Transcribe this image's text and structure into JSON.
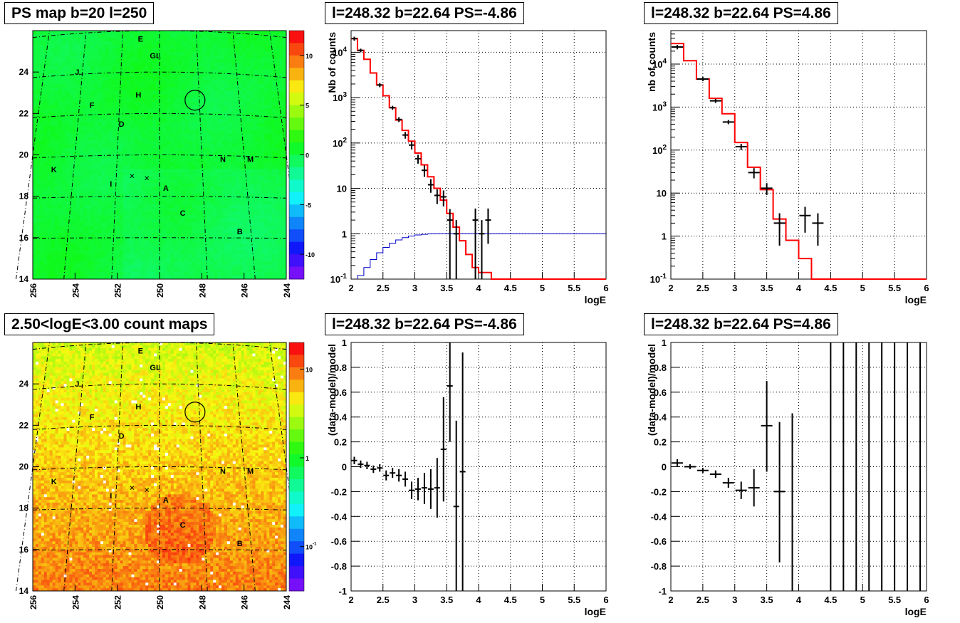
{
  "panels": {
    "top_left_title": "PS map b=20 l=250",
    "top_mid_title": "l=248.32 b=22.64 PS=-4.86",
    "top_right_title": "l=248.32 b=22.64 PS=4.86",
    "bot_left_title": "2.50<logE<3.00 count maps",
    "bot_mid_title": "l=248.32 b=22.64 PS=-4.86",
    "bot_right_title": "l=248.32 b=22.64 PS=4.86"
  },
  "colors": {
    "data": "#000000",
    "model": "#ff0000",
    "acceptance": "#0000cc",
    "map_green": "#22ee44"
  },
  "chart_data": [
    {
      "type": "heatmap",
      "title": "PS map b=20 l=250",
      "xlim": [
        256,
        244
      ],
      "ylim": [
        14,
        26
      ],
      "x_ticks": [
        "256",
        "254",
        "252",
        "250",
        "248",
        "246",
        "244"
      ],
      "y_ticks": [
        "14",
        "16",
        "18",
        "20",
        "22",
        "24"
      ],
      "colorbar_ticks": [
        "10",
        "5",
        "0",
        "-5",
        "-10"
      ],
      "colorbar_range": [
        -12.5,
        12.5
      ],
      "source_labels": [
        {
          "name": "E",
          "l": 250.9,
          "b": 25.6
        },
        {
          "name": "GL",
          "l": 250.2,
          "b": 24.8
        },
        {
          "name": "J",
          "l": 253.9,
          "b": 24.0
        },
        {
          "name": "H",
          "l": 251.0,
          "b": 22.9
        },
        {
          "name": "F",
          "l": 253.2,
          "b": 22.4
        },
        {
          "name": "D",
          "l": 251.8,
          "b": 21.5
        },
        {
          "name": "K",
          "l": 255.0,
          "b": 19.3
        },
        {
          "name": "N",
          "l": 247.0,
          "b": 19.8
        },
        {
          "name": "M",
          "l": 245.7,
          "b": 19.8
        },
        {
          "name": "I",
          "l": 252.3,
          "b": 18.6
        },
        {
          "name": "A",
          "l": 249.7,
          "b": 18.4
        },
        {
          "name": "C",
          "l": 248.9,
          "b": 17.2
        },
        {
          "name": "B",
          "l": 246.2,
          "b": 16.3
        }
      ],
      "crosses": [
        {
          "l": 251.3,
          "b": 19.0
        },
        {
          "l": 250.6,
          "b": 18.9
        }
      ],
      "circle": {
        "l": 248.32,
        "b": 22.64
      }
    },
    {
      "type": "line",
      "title": "l=248.32 b=22.64 PS=-4.86",
      "xlabel": "logE",
      "ylabel": "Nb of counts",
      "yscale": "log",
      "xlim": [
        2,
        6
      ],
      "ylim": [
        0.1,
        30000
      ],
      "x_ticks": [
        "2",
        "2.5",
        "3",
        "3.5",
        "4",
        "4.5",
        "5",
        "5.5",
        "6"
      ],
      "y_ticks": [
        "10^-1",
        "1",
        "10",
        "10^2",
        "10^3",
        "10^4"
      ],
      "model_step": {
        "edges": [
          2,
          2.1,
          2.2,
          2.3,
          2.4,
          2.5,
          2.6,
          2.7,
          2.8,
          2.9,
          3.0,
          3.1,
          3.2,
          3.3,
          3.4,
          3.5,
          3.6,
          3.7,
          3.8,
          3.9,
          4.0,
          4.1,
          4.2,
          6.0
        ],
        "values": [
          20000,
          11000,
          7000,
          3500,
          1900,
          1100,
          600,
          320,
          190,
          110,
          60,
          33,
          18,
          10,
          5.5,
          2.8,
          1.4,
          0.7,
          0.35,
          0.18,
          0.14,
          0.14,
          0.1
        ]
      },
      "acceptance_step": {
        "edges": [
          2.1,
          2.2,
          2.3,
          2.4,
          2.5,
          2.6,
          2.7,
          2.8,
          2.9,
          3.0,
          3.1,
          3.2,
          3.3,
          3.4,
          3.5,
          6.0
        ],
        "values": [
          0.12,
          0.18,
          0.27,
          0.38,
          0.5,
          0.62,
          0.73,
          0.82,
          0.89,
          0.94,
          0.97,
          0.99,
          1.0,
          1.0,
          1.0
        ]
      },
      "points": [
        {
          "x": 2.05,
          "y": 20000,
          "lo": 18000,
          "hi": 22000
        },
        {
          "x": 2.15,
          "y": 11000,
          "lo": 10000,
          "hi": 12000
        },
        {
          "x": 2.45,
          "y": 1900,
          "lo": 1700,
          "hi": 2100
        },
        {
          "x": 2.65,
          "y": 600,
          "lo": 540,
          "hi": 660
        },
        {
          "x": 2.75,
          "y": 330,
          "lo": 290,
          "hi": 370
        },
        {
          "x": 2.85,
          "y": 150,
          "lo": 125,
          "hi": 175
        },
        {
          "x": 2.95,
          "y": 90,
          "lo": 72,
          "hi": 108
        },
        {
          "x": 3.05,
          "y": 45,
          "lo": 35,
          "hi": 55
        },
        {
          "x": 3.15,
          "y": 25,
          "lo": 18,
          "hi": 32
        },
        {
          "x": 3.25,
          "y": 12,
          "lo": 8,
          "hi": 16
        },
        {
          "x": 3.35,
          "y": 7,
          "lo": 4.5,
          "hi": 9.5
        },
        {
          "x": 3.45,
          "y": 6.5,
          "lo": 4,
          "hi": 9
        },
        {
          "x": 3.55,
          "y": 2,
          "lo": 0.1,
          "hi": 3.5
        },
        {
          "x": 3.65,
          "y": 1,
          "lo": 0.1,
          "hi": 2.0
        },
        {
          "x": 3.95,
          "y": 2,
          "lo": 0.1,
          "hi": 3.6
        },
        {
          "x": 4.05,
          "y": 1,
          "lo": 0.1,
          "hi": 2.0
        },
        {
          "x": 4.15,
          "y": 2,
          "lo": 0.6,
          "hi": 3.6
        }
      ]
    },
    {
      "type": "line",
      "title": "l=248.32 b=22.64 PS=4.86",
      "xlabel": "logE",
      "ylabel": "nb of counts",
      "yscale": "log",
      "xlim": [
        2,
        6
      ],
      "ylim": [
        0.1,
        60000
      ],
      "x_ticks": [
        "2",
        "2.5",
        "3",
        "3.5",
        "4",
        "4.5",
        "5",
        "5.5",
        "6"
      ],
      "y_ticks": [
        "10^-1",
        "1",
        "10",
        "10^2",
        "10^3",
        "10^4"
      ],
      "model_step": {
        "edges": [
          2,
          2.2,
          2.4,
          2.6,
          2.8,
          3.0,
          3.2,
          3.4,
          3.6,
          3.8,
          4.0,
          4.2,
          6.0
        ],
        "values": [
          30000,
          12000,
          4500,
          1600,
          700,
          150,
          40,
          12,
          2.5,
          0.8,
          0.3,
          0.1
        ]
      },
      "points": [
        {
          "x": 2.1,
          "y": 25000,
          "lo": 22000,
          "hi": 28000
        },
        {
          "x": 2.5,
          "y": 4500,
          "lo": 4000,
          "hi": 5000
        },
        {
          "x": 2.7,
          "y": 1400,
          "lo": 1250,
          "hi": 1550
        },
        {
          "x": 2.9,
          "y": 450,
          "lo": 400,
          "hi": 500
        },
        {
          "x": 3.1,
          "y": 120,
          "lo": 100,
          "hi": 140
        },
        {
          "x": 3.3,
          "y": 30,
          "lo": 22,
          "hi": 38
        },
        {
          "x": 3.5,
          "y": 13,
          "lo": 9,
          "hi": 17
        },
        {
          "x": 3.7,
          "y": 2,
          "lo": 0.6,
          "hi": 3.4
        },
        {
          "x": 4.1,
          "y": 3,
          "lo": 1.2,
          "hi": 4.8
        },
        {
          "x": 4.3,
          "y": 2,
          "lo": 0.6,
          "hi": 3.4
        }
      ]
    },
    {
      "type": "heatmap",
      "title": "2.50<logE<3.00 count maps",
      "xlim": [
        256,
        244
      ],
      "ylim": [
        14,
        26
      ],
      "x_ticks": [
        "256",
        "254",
        "252",
        "250",
        "248",
        "246",
        "244"
      ],
      "y_ticks": [
        "14",
        "16",
        "18",
        "20",
        "22",
        "24"
      ],
      "colorbar_ticks": [
        "10",
        "1",
        "10^-1"
      ]
    },
    {
      "type": "scatter",
      "title": "l=248.32 b=22.64 PS=-4.86",
      "xlabel": "logE",
      "ylabel": "(data-model)/model",
      "xlim": [
        2,
        6
      ],
      "ylim": [
        -1,
        1
      ],
      "x_ticks": [
        "2",
        "2.5",
        "3",
        "3.5",
        "4",
        "4.5",
        "5",
        "5.5",
        "6"
      ],
      "y_ticks": [
        "-1",
        "-0.8",
        "-0.6",
        "-0.4",
        "-0.2",
        "0",
        "0.2",
        "0.4",
        "0.6",
        "0.8",
        "1"
      ],
      "points": [
        {
          "x": 2.05,
          "y": 0.05,
          "lo": 0.02,
          "hi": 0.08
        },
        {
          "x": 2.15,
          "y": 0.02,
          "lo": -0.01,
          "hi": 0.05
        },
        {
          "x": 2.25,
          "y": 0.01,
          "lo": -0.02,
          "hi": 0.04
        },
        {
          "x": 2.35,
          "y": -0.02,
          "lo": -0.05,
          "hi": 0.01
        },
        {
          "x": 2.45,
          "y": -0.01,
          "lo": -0.04,
          "hi": 0.02
        },
        {
          "x": 2.55,
          "y": -0.07,
          "lo": -0.11,
          "hi": -0.03
        },
        {
          "x": 2.65,
          "y": -0.05,
          "lo": -0.09,
          "hi": -0.01
        },
        {
          "x": 2.75,
          "y": -0.07,
          "lo": -0.12,
          "hi": -0.02
        },
        {
          "x": 2.85,
          "y": -0.1,
          "lo": -0.16,
          "hi": -0.04
        },
        {
          "x": 2.95,
          "y": -0.19,
          "lo": -0.26,
          "hi": -0.12
        },
        {
          "x": 3.05,
          "y": -0.18,
          "lo": -0.27,
          "hi": -0.09
        },
        {
          "x": 3.15,
          "y": -0.17,
          "lo": -0.3,
          "hi": -0.05
        },
        {
          "x": 3.25,
          "y": -0.18,
          "lo": -0.34,
          "hi": -0.02
        },
        {
          "x": 3.35,
          "y": -0.17,
          "lo": -0.41,
          "hi": 0.07
        },
        {
          "x": 3.45,
          "y": 0.14,
          "lo": -0.28,
          "hi": 0.56
        },
        {
          "x": 3.55,
          "y": 0.65,
          "lo": 0.2,
          "hi": 1.0
        },
        {
          "x": 3.65,
          "y": -0.32,
          "lo": -1.0,
          "hi": 0.37
        },
        {
          "x": 3.75,
          "y": -0.04,
          "lo": -1.0,
          "hi": 0.92
        }
      ]
    },
    {
      "type": "scatter",
      "title": "l=248.32 b=22.64 PS=4.86",
      "xlabel": "logE",
      "ylabel": "(data-model)/model",
      "xlim": [
        2,
        6
      ],
      "ylim": [
        -1,
        1
      ],
      "x_ticks": [
        "2",
        "2.5",
        "3",
        "3.5",
        "4",
        "4.5",
        "5",
        "5.5",
        "6"
      ],
      "y_ticks": [
        "-1",
        "-0.8",
        "-0.6",
        "-0.4",
        "-0.2",
        "0",
        "0.2",
        "0.4",
        "0.6",
        "0.8",
        "1"
      ],
      "points": [
        {
          "x": 2.1,
          "y": 0.03,
          "lo": 0.0,
          "hi": 0.06
        },
        {
          "x": 2.3,
          "y": 0.0,
          "lo": -0.02,
          "hi": 0.02
        },
        {
          "x": 2.5,
          "y": -0.03,
          "lo": -0.05,
          "hi": -0.01
        },
        {
          "x": 2.7,
          "y": -0.06,
          "lo": -0.09,
          "hi": -0.03
        },
        {
          "x": 2.9,
          "y": -0.13,
          "lo": -0.17,
          "hi": -0.09
        },
        {
          "x": 3.1,
          "y": -0.19,
          "lo": -0.26,
          "hi": -0.12
        },
        {
          "x": 3.3,
          "y": -0.17,
          "lo": -0.32,
          "hi": -0.02
        },
        {
          "x": 3.5,
          "y": 0.33,
          "lo": -0.04,
          "hi": 0.69
        },
        {
          "x": 3.7,
          "y": -0.2,
          "lo": -0.77,
          "hi": 0.36
        },
        {
          "x": 3.9,
          "y": null,
          "lo": -1.0,
          "hi": 0.43
        },
        {
          "x": 4.5,
          "y": null,
          "lo": -1.0,
          "hi": 1.0
        },
        {
          "x": 4.7,
          "y": null,
          "lo": -1.0,
          "hi": 1.0
        },
        {
          "x": 4.9,
          "y": null,
          "lo": -1.0,
          "hi": 1.0
        },
        {
          "x": 5.1,
          "y": null,
          "lo": -1.0,
          "hi": 1.0
        },
        {
          "x": 5.3,
          "y": null,
          "lo": -1.0,
          "hi": 1.0
        },
        {
          "x": 5.5,
          "y": null,
          "lo": -1.0,
          "hi": 1.0
        },
        {
          "x": 5.7,
          "y": null,
          "lo": -1.0,
          "hi": 1.0
        },
        {
          "x": 5.9,
          "y": null,
          "lo": -1.0,
          "hi": 1.0
        }
      ]
    }
  ]
}
